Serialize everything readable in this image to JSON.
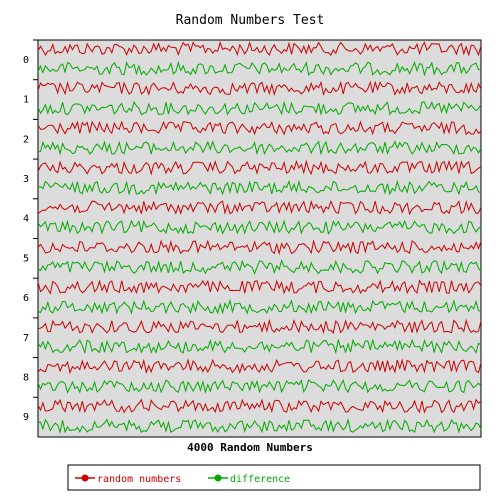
{
  "chart_data": {
    "type": "line",
    "title": "Random Numbers Test",
    "xlabel": "4000 Random Numbers",
    "ylabel": "",
    "ytick_labels": [
      "0",
      "1",
      "2",
      "3",
      "4",
      "5",
      "6",
      "7",
      "8",
      "9"
    ],
    "grid": false,
    "legend_placement": "bottom",
    "colors": {
      "background": "#ffffff",
      "plot_background": "#dcdcdc",
      "random_numbers": "#cc0000",
      "difference": "#00aa00",
      "axis": "#000000"
    },
    "series": [
      {
        "name": "random numbers",
        "color": "#cc0000"
      },
      {
        "name": "difference",
        "color": "#00aa00"
      }
    ]
  }
}
